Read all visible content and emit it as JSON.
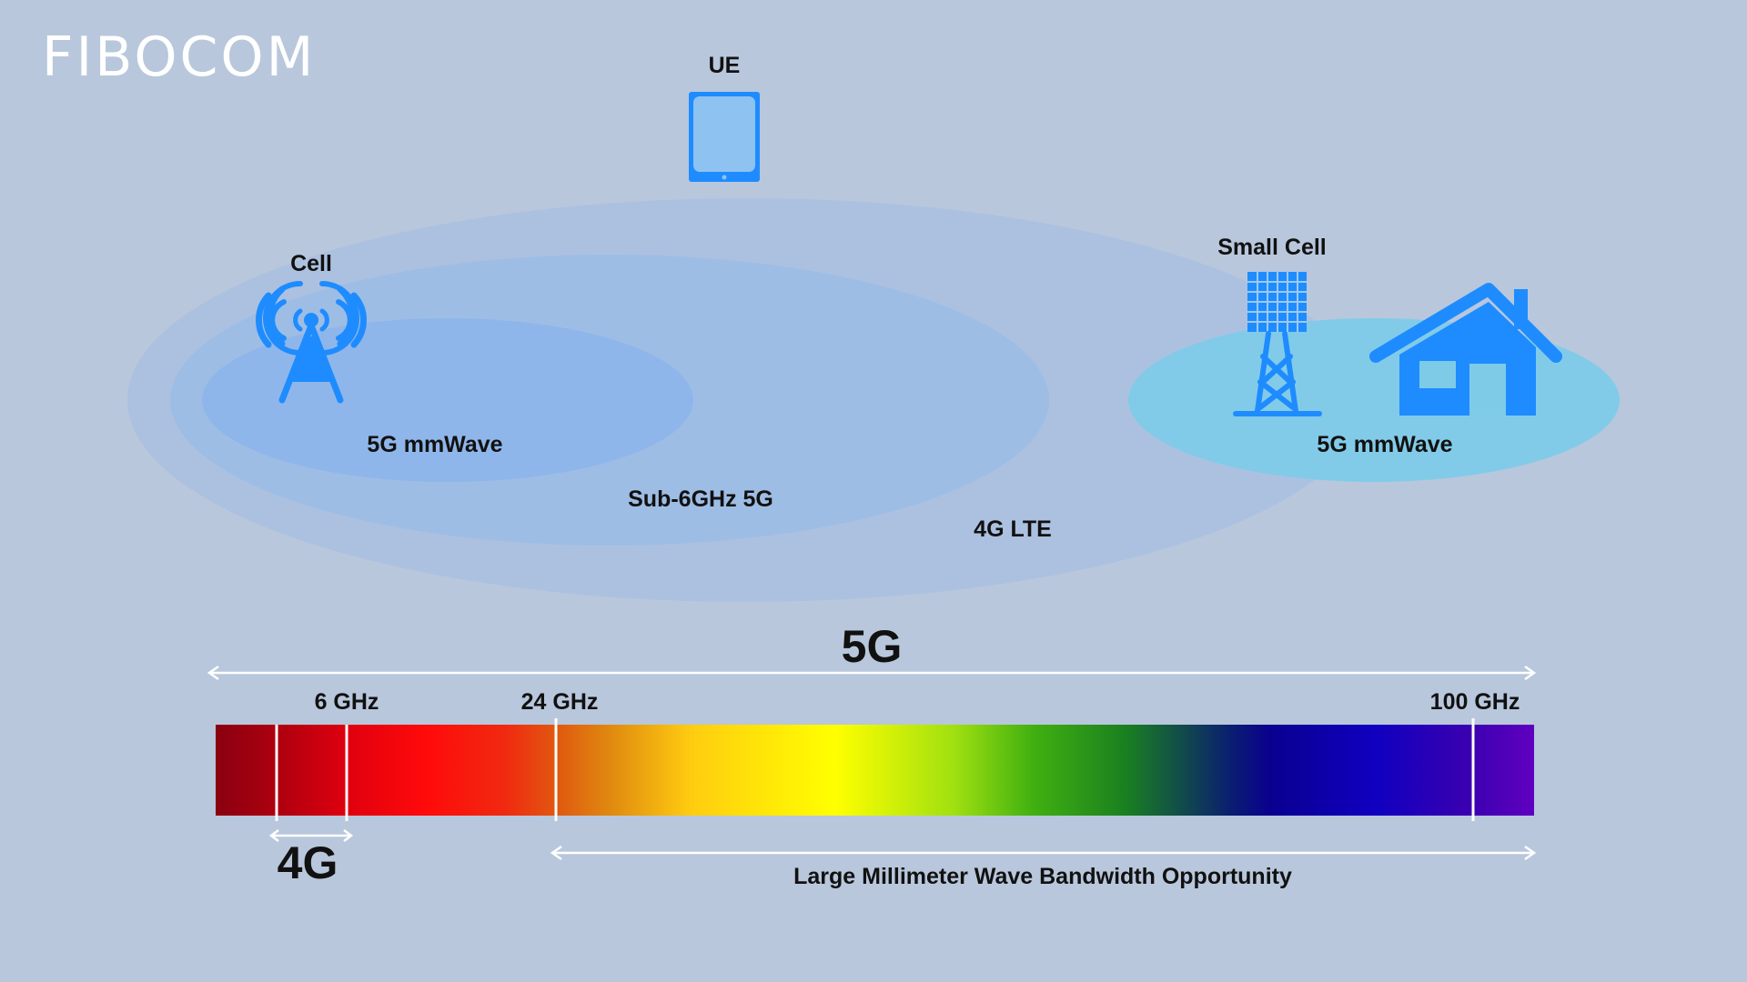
{
  "brand": {
    "logo_text": "FIBOCOM"
  },
  "coverage": {
    "ue_label": "UE",
    "cell_label": "Cell",
    "small_cell_label": "Small Cell",
    "zones": {
      "cell_mmwave": "5G mmWave",
      "sub6": "Sub-6GHz 5G",
      "lte": "4G LTE",
      "small_cell_mmwave": "5G mmWave"
    }
  },
  "spectrum": {
    "range_5g_label": "5G",
    "range_4g_label": "4G",
    "mmwave_opportunity_label": "Large Millimeter Wave Bandwidth Opportunity",
    "markers": [
      {
        "label": "6 GHz"
      },
      {
        "label": "24 GHz"
      },
      {
        "label": "100 GHz"
      }
    ]
  },
  "colors": {
    "background": "#b8c7dc",
    "icon_blue": "#1e8cff",
    "lte_zone": "#a9bfe0",
    "sub6_zone": "#9cbde6",
    "mmwave_zone": "#8eb5ea",
    "small_cell_zone": "#7ecbe8",
    "arrow_white": "#ffffff"
  }
}
